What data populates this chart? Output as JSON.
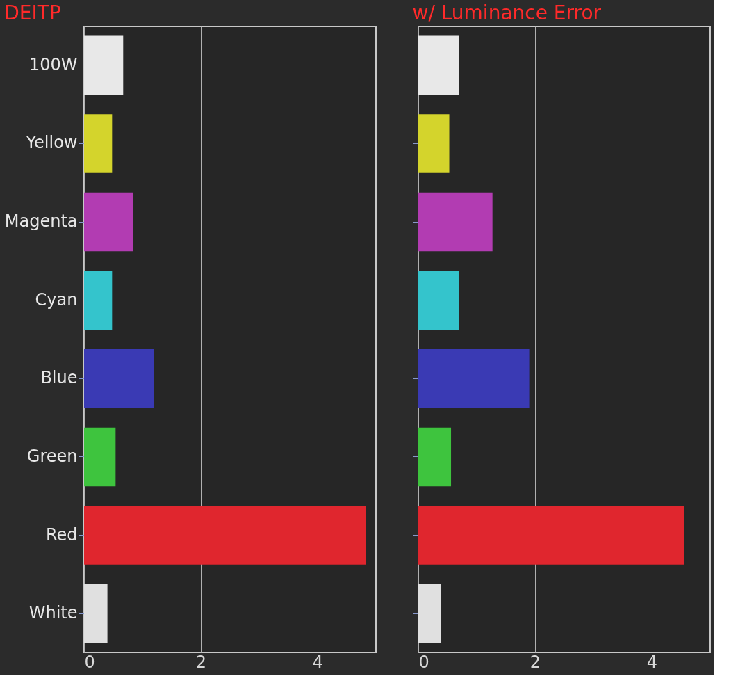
{
  "chart_data": [
    {
      "type": "bar",
      "orientation": "horizontal",
      "title": "DEITP",
      "categories": [
        "100W",
        "Yellow",
        "Magenta",
        "Cyan",
        "Blue",
        "Green",
        "Red",
        "White"
      ],
      "values": [
        0.67,
        0.48,
        0.84,
        0.48,
        1.2,
        0.54,
        4.83,
        0.4
      ],
      "colors": [
        "#e8e8e8",
        "#d4d42c",
        "#b23cb2",
        "#34c4cc",
        "#3a3ab4",
        "#3ec43e",
        "#e0262e",
        "#e0e0e0"
      ],
      "xlim": [
        0,
        5
      ],
      "xticks": [
        0,
        2,
        4
      ],
      "grid": "x"
    },
    {
      "type": "bar",
      "orientation": "horizontal",
      "title": "w/ Luminance Error",
      "categories": [
        null,
        null,
        null,
        null,
        null,
        null,
        null,
        null
      ],
      "values": [
        0.7,
        0.53,
        1.27,
        0.7,
        1.9,
        0.56,
        4.55,
        0.39
      ],
      "colors": [
        "#e8e8e8",
        "#d4d42c",
        "#b23cb2",
        "#34c4cc",
        "#3a3ab4",
        "#3ec43e",
        "#e0262e",
        "#e0e0e0"
      ],
      "xlim": [
        0,
        5
      ],
      "xticks": [
        0,
        2,
        4
      ],
      "grid": "x",
      "tick_labels": "x"
    }
  ]
}
